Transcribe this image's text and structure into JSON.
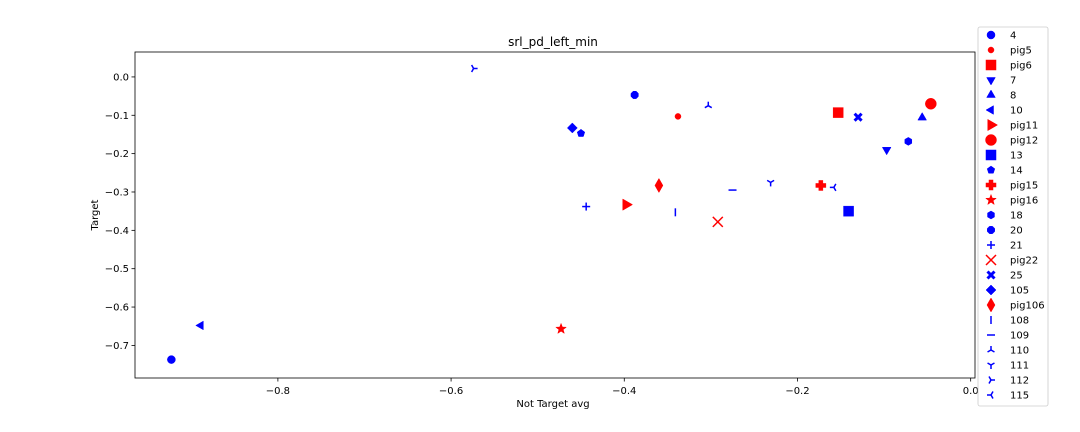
{
  "chart_data": {
    "type": "scatter",
    "title": "srl_pd_left_min",
    "xlabel": "Not Target avg",
    "ylabel": "Target",
    "xlim": [
      -0.965,
      0.005
    ],
    "ylim": [
      -0.785,
      0.065
    ],
    "xticks": [
      -0.8,
      -0.6,
      -0.4,
      -0.2,
      0.0
    ],
    "xtick_labels": [
      "−0.8",
      "−0.6",
      "−0.4",
      "−0.2",
      "0.0"
    ],
    "yticks": [
      0.0,
      -0.1,
      -0.2,
      -0.3,
      -0.4,
      -0.5,
      -0.6,
      -0.7
    ],
    "ytick_labels": [
      "0.0",
      "−0.1",
      "−0.2",
      "−0.3",
      "−0.4",
      "−0.5",
      "−0.6",
      "−0.7"
    ],
    "grid": false,
    "legend_position": "outside-right",
    "series": [
      {
        "name": "4",
        "marker": "circle",
        "color": "#0000ff",
        "x": -0.923,
        "y": -0.737
      },
      {
        "name": "pig5",
        "marker": "small-circle",
        "color": "#ff0000",
        "x": -0.338,
        "y": -0.103
      },
      {
        "name": "pig6",
        "marker": "square",
        "color": "#ff0000",
        "x": -0.153,
        "y": -0.093
      },
      {
        "name": "7",
        "marker": "triangle-down",
        "color": "#0000ff",
        "x": -0.097,
        "y": -0.19
      },
      {
        "name": "8",
        "marker": "triangle-up",
        "color": "#0000ff",
        "x": -0.056,
        "y": -0.106
      },
      {
        "name": "10",
        "marker": "triangle-left",
        "color": "#0000ff",
        "x": -0.889,
        "y": -0.648
      },
      {
        "name": "pig11",
        "marker": "triangle-right",
        "color": "#ff0000",
        "x": -0.398,
        "y": -0.333
      },
      {
        "name": "pig12",
        "marker": "big-circle",
        "color": "#ff0000",
        "x": -0.046,
        "y": -0.07
      },
      {
        "name": "13",
        "marker": "square",
        "color": "#0000ff",
        "x": -0.141,
        "y": -0.35
      },
      {
        "name": "14",
        "marker": "pentagon",
        "color": "#0000ff",
        "x": -0.45,
        "y": -0.147
      },
      {
        "name": "pig15",
        "marker": "plus-filled",
        "color": "#ff0000",
        "x": -0.173,
        "y": -0.283
      },
      {
        "name": "pig16",
        "marker": "star",
        "color": "#ff0000",
        "x": -0.473,
        "y": -0.657
      },
      {
        "name": "18",
        "marker": "hexagon",
        "color": "#0000ff",
        "x": -0.072,
        "y": -0.168
      },
      {
        "name": "20",
        "marker": "octagon",
        "color": "#0000ff",
        "x": -0.388,
        "y": -0.047
      },
      {
        "name": "21",
        "marker": "plus",
        "color": "#0000ff",
        "x": -0.444,
        "y": -0.338
      },
      {
        "name": "pig22",
        "marker": "x",
        "color": "#ff0000",
        "x": -0.292,
        "y": -0.378
      },
      {
        "name": "25",
        "marker": "x-filled",
        "color": "#0000ff",
        "x": -0.13,
        "y": -0.105
      },
      {
        "name": "105",
        "marker": "diamond",
        "color": "#0000ff",
        "x": -0.46,
        "y": -0.133
      },
      {
        "name": "pig106",
        "marker": "thin-diamond",
        "color": "#ff0000",
        "x": -0.36,
        "y": -0.283
      },
      {
        "name": "108",
        "marker": "vline",
        "color": "#0000ff",
        "x": -0.341,
        "y": -0.353
      },
      {
        "name": "109",
        "marker": "hline",
        "color": "#0000ff",
        "x": -0.275,
        "y": -0.295
      },
      {
        "name": "110",
        "marker": "tri-down",
        "color": "#0000ff",
        "x": -0.303,
        "y": -0.075
      },
      {
        "name": "111",
        "marker": "tri-up",
        "color": "#0000ff",
        "x": -0.231,
        "y": -0.275
      },
      {
        "name": "112",
        "marker": "tri-left",
        "color": "#0000ff",
        "x": -0.574,
        "y": 0.022
      },
      {
        "name": "115",
        "marker": "tri-right",
        "color": "#0000ff",
        "x": -0.158,
        "y": -0.288
      }
    ]
  }
}
